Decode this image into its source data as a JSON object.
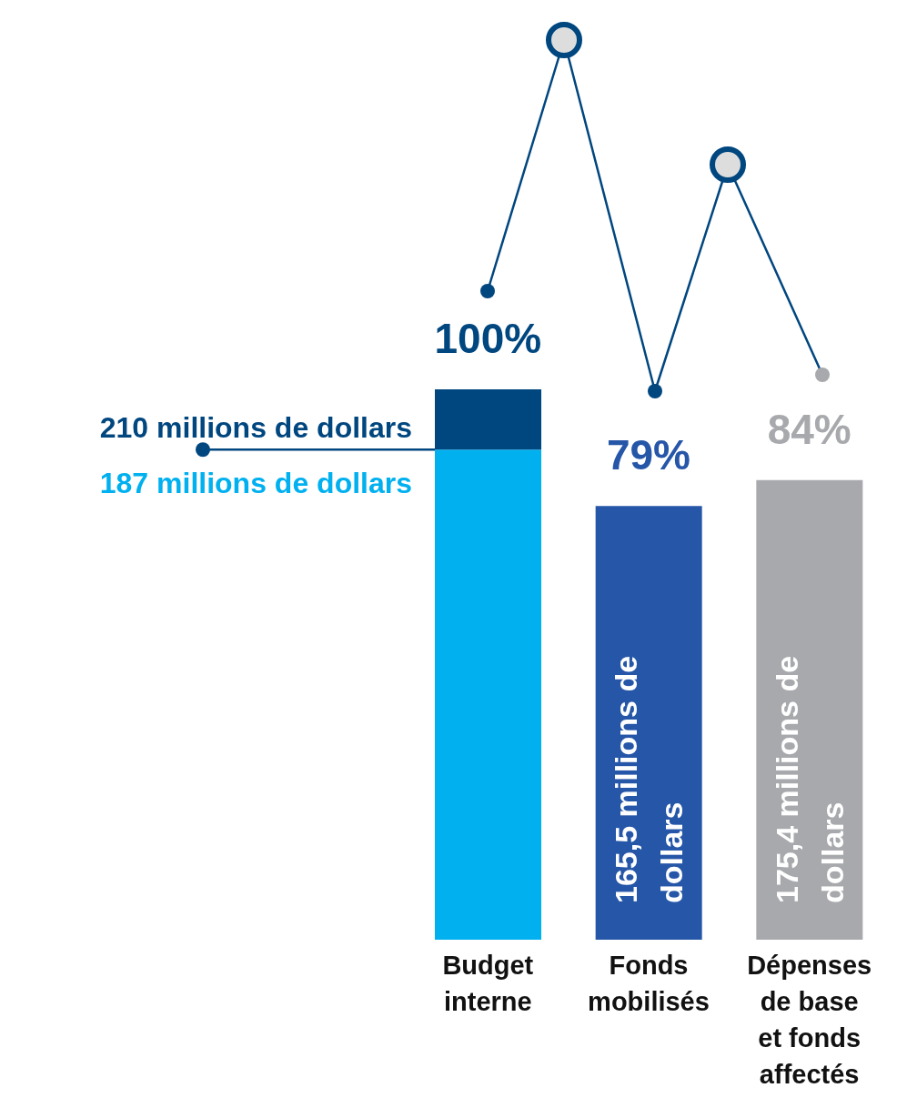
{
  "chart_data": {
    "type": "bar",
    "stacked": true,
    "categories": [
      "Budget interne",
      "Fonds mobilisés",
      "Dépenses de base et fonds affectés"
    ],
    "series": [
      {
        "color": "#00b0ef",
        "colors": [
          "#00b0ef",
          "#2656a8",
          "#a7a9ac"
        ],
        "values": [
          187,
          165.5,
          175.4
        ],
        "value_labels": [
          "187 millions de dollars",
          "165,5 millions de dollars",
          "175,4 millions de dollars"
        ]
      },
      {
        "color": "#00467f",
        "values": [
          23,
          null,
          null
        ]
      }
    ],
    "totals": [
      "210 millions de dollars",
      null,
      null
    ],
    "annotations": [
      {
        "text": "100%",
        "x": "Budget interne",
        "y": 210
      },
      {
        "text": "79%",
        "x": "Fonds mobilisés",
        "y": 165.5
      },
      {
        "text": "84%",
        "x": "Dépenses de base et fonds affectés",
        "y": 175.4
      }
    ]
  }
}
